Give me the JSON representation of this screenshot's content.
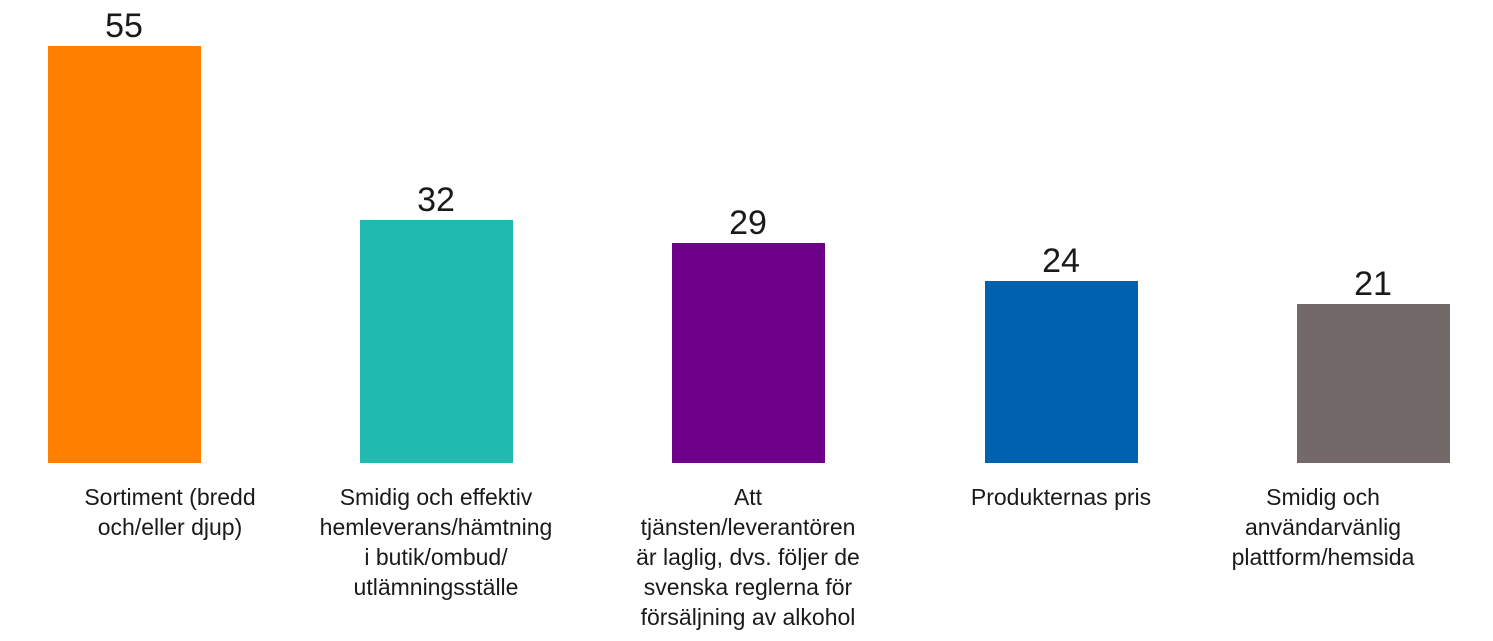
{
  "chart_data": {
    "type": "bar",
    "categories": [
      "Sortiment (bredd\noch/eller djup)",
      "Smidig och effektiv\nhemleverans/hämtning\ni butik/ombud/\nutlämningsställe",
      "Att\ntjänsten/leverantören\när laglig, dvs. följer de\nsvenska reglerna för\nförsäljning av alkohol",
      "Produkternas pris",
      "Smidig och\nanvändarvänlig\nplattform/hemsida"
    ],
    "values": [
      55,
      32,
      29,
      24,
      21
    ],
    "value_labels": [
      "55",
      "32",
      "29",
      "24",
      "21"
    ],
    "colors": [
      "#FF7F00",
      "#20BAB0",
      "#6D0087",
      "#0062AE",
      "#726968"
    ],
    "ylim": [
      0,
      55
    ],
    "grid": false,
    "legend": "none",
    "title": "",
    "xlabel": "",
    "ylabel": ""
  }
}
